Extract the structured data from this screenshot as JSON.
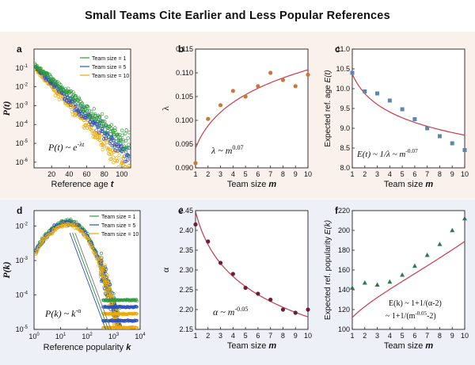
{
  "title": "Small Teams Cite Earlier and Less Popular References",
  "colors": {
    "green": "#2e9a3a",
    "blue": "#2a4fc0",
    "yellow": "#f0a800",
    "fit_red": "#c83a4a",
    "orange_dot": "#c8783a",
    "steel_square": "#5a86b0",
    "teal_triangle": "#2e7a4e",
    "maroon_dot": "#6a1e3a",
    "top_band": "#faf0ec",
    "bottom_band": "#eef0f8"
  },
  "chart_data": [
    {
      "panel": "a",
      "type": "scatter",
      "xlabel": "Reference age t",
      "ylabel": "P(t)",
      "xlim": [
        0,
        110
      ],
      "ylim_log10": [
        -6.3,
        0
      ],
      "y_scale": "log",
      "xticks": [
        20,
        40,
        60,
        80,
        100
      ],
      "xtick_labels": [
        "20",
        "40",
        "60",
        "80",
        "100"
      ],
      "yticks_log10": [
        -6,
        -5,
        -4,
        -3,
        -2,
        -1
      ],
      "ytick_labels": [
        "10",
        "10",
        "10",
        "10",
        "10",
        "10"
      ],
      "ytick_exponents": [
        "-6",
        "-5",
        "-4",
        "-3",
        "-2",
        "-1"
      ],
      "legend": [
        "Team size = 1",
        "Team size = 5",
        "Team size = 10"
      ],
      "legend_position": "top-right",
      "annotation_main": "P(t) ~ e",
      "annotation_sup": "-λt",
      "series_log10_decay_per_year": [
        -0.04,
        -0.045,
        -0.05
      ],
      "series_log10_start": [
        -0.8,
        -0.9,
        -1.0
      ]
    },
    {
      "panel": "b",
      "type": "scatter",
      "xlabel": "Team size m",
      "ylabel": "λ",
      "x": [
        1,
        2,
        3,
        4,
        5,
        6,
        7,
        8,
        9,
        10
      ],
      "y": [
        0.091,
        0.1003,
        0.1032,
        0.1062,
        0.105,
        0.1072,
        0.11,
        0.1085,
        0.1072,
        0.1096
      ],
      "fit_exponent": 0.07,
      "xlim": [
        1,
        10
      ],
      "ylim": [
        0.09,
        0.115
      ],
      "xticks": [
        1,
        2,
        3,
        4,
        5,
        6,
        7,
        8,
        9,
        10
      ],
      "yticks": [
        0.09,
        0.095,
        0.1,
        0.105,
        0.11,
        0.115
      ],
      "ytick_labels": [
        "0.090",
        "0.095",
        "0.100",
        "0.105",
        "0.110",
        "0.115"
      ],
      "annotation_main": "λ ~ m",
      "annotation_sup": "0.07"
    },
    {
      "panel": "c",
      "type": "scatter",
      "xlabel": "Team size m",
      "ylabel": "Expected ref. age E(t)",
      "x": [
        1,
        2,
        3,
        4,
        5,
        6,
        7,
        8,
        9,
        10
      ],
      "y": [
        10.4,
        9.93,
        9.88,
        9.7,
        9.48,
        9.23,
        9.0,
        8.8,
        8.62,
        8.45
      ],
      "fit_exponent": -0.07,
      "xlim": [
        1,
        10
      ],
      "ylim": [
        8.0,
        11.0
      ],
      "xticks": [
        1,
        2,
        3,
        4,
        5,
        6,
        7,
        8,
        9,
        10
      ],
      "yticks": [
        8.0,
        8.5,
        9.0,
        9.5,
        10.0,
        10.5,
        11.0
      ],
      "ytick_labels": [
        "8.0",
        "8.5",
        "9.0",
        "9.5",
        "10.0",
        "10.5",
        "11.0"
      ],
      "annotation_main": "E(t) ~ 1/λ ~ m",
      "annotation_sup": "-0.07"
    },
    {
      "panel": "d",
      "type": "scatter",
      "xlabel": "Reference popularity k",
      "ylabel": "P(k)",
      "xlim_log10": [
        0,
        4
      ],
      "ylim_log10": [
        -5,
        -1.55
      ],
      "x_scale": "log",
      "y_scale": "log",
      "xticks_log10": [
        0,
        1,
        2,
        3,
        4
      ],
      "xtick_labels": [
        "10",
        "10",
        "10",
        "10",
        "10"
      ],
      "xtick_exponents": [
        "0",
        "1",
        "2",
        "3",
        "4"
      ],
      "yticks_log10": [
        -5,
        -4,
        -3,
        -2
      ],
      "ytick_labels": [
        "10",
        "10",
        "10",
        "10"
      ],
      "ytick_exponents": [
        "-5",
        "-4",
        "-3",
        "-2"
      ],
      "legend": [
        "Team size = 1",
        "Team size = 5",
        "Team size = 10"
      ],
      "legend_position": "top-right",
      "annotation_main": "P(k) ~ k",
      "annotation_sup": "-α"
    },
    {
      "panel": "e",
      "type": "scatter",
      "xlabel": "Team size m",
      "ylabel": "α",
      "x": [
        1,
        2,
        3,
        4,
        5,
        6,
        7,
        8,
        9,
        10
      ],
      "y": [
        2.415,
        2.372,
        2.318,
        2.29,
        2.255,
        2.24,
        2.225,
        2.2,
        2.192,
        2.2
      ],
      "fit_exponent": -0.05,
      "xlim": [
        1,
        10
      ],
      "ylim": [
        2.15,
        2.45
      ],
      "xticks": [
        1,
        2,
        3,
        4,
        5,
        6,
        7,
        8,
        9,
        10
      ],
      "yticks": [
        2.15,
        2.2,
        2.25,
        2.3,
        2.35,
        2.4,
        2.45
      ],
      "ytick_labels": [
        "2.15",
        "2.20",
        "2.25",
        "2.30",
        "2.35",
        "2.40",
        "2.45"
      ],
      "annotation_main": "α ~ m",
      "annotation_sup": "-0.05"
    },
    {
      "panel": "f",
      "type": "scatter",
      "xlabel": "Team size m",
      "ylabel": "Expected ref. popularity E(k)",
      "x": [
        1,
        2,
        3,
        4,
        5,
        6,
        7,
        8,
        9,
        10
      ],
      "y": [
        142,
        147,
        145,
        148,
        155,
        164,
        175,
        186,
        200,
        212
      ],
      "xlim": [
        1,
        10
      ],
      "ylim": [
        100,
        220
      ],
      "xticks": [
        1,
        2,
        3,
        4,
        5,
        6,
        7,
        8,
        9,
        10
      ],
      "yticks": [
        100,
        120,
        140,
        160,
        180,
        200,
        220
      ],
      "ytick_labels": [
        "100",
        "120",
        "140",
        "160",
        "180",
        "200",
        "220"
      ],
      "annotation_line1": "E(k) ~ 1+1/(α-2)",
      "annotation_line2_main": "~ 1+1/(m",
      "annotation_line2_sup": "-0.05",
      "annotation_line2_tail": "-2)"
    }
  ]
}
